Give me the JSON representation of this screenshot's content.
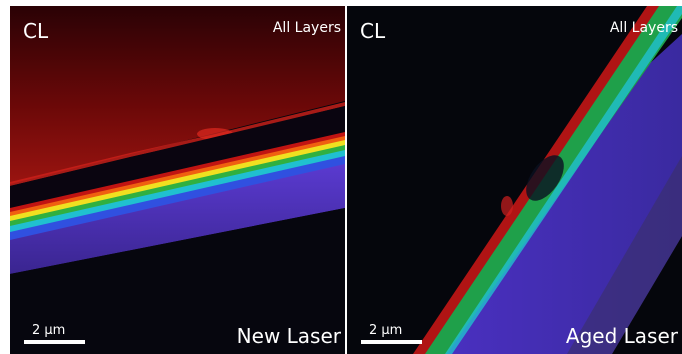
{
  "panels": [
    {
      "mode_label": "CL",
      "layers_label": "All Layers",
      "scale_label": "2 µm",
      "caption": "New Laser"
    },
    {
      "mode_label": "CL",
      "layers_label": "All Layers",
      "scale_label": "2 µm",
      "caption": "Aged Laser"
    }
  ],
  "colors": {
    "background": "#05060c",
    "red": "#c01412",
    "yellow": "#f0e020",
    "green": "#1fa04a",
    "cyan": "#20c0d0",
    "blue": "#4a2fb8"
  }
}
